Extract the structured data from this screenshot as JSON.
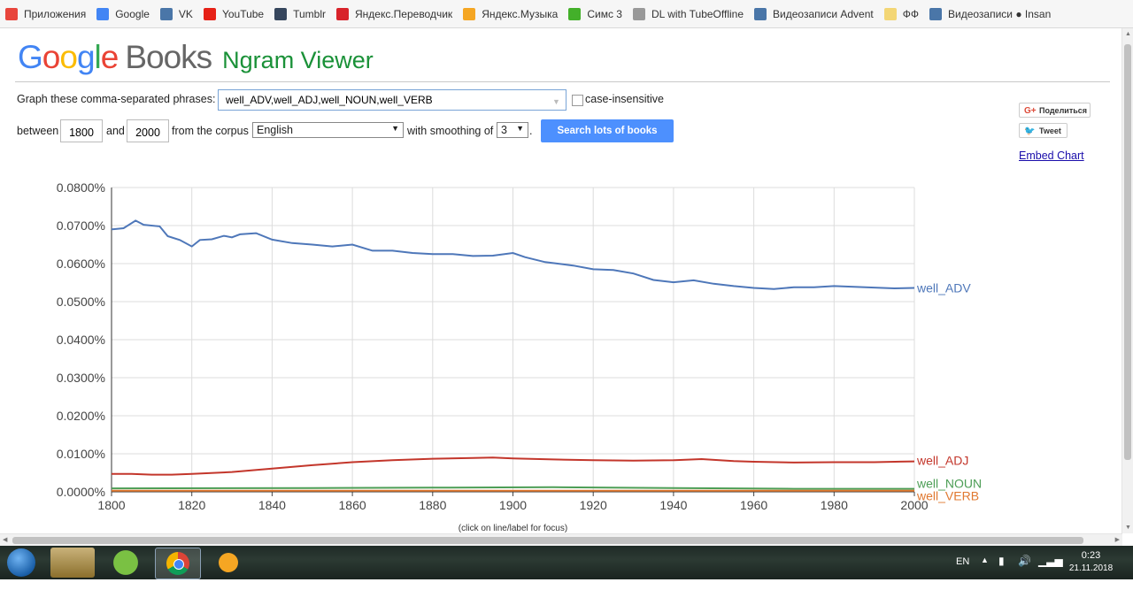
{
  "bookmarks": [
    {
      "label": "Приложения",
      "icon": "apps-grid-icon",
      "color": "#e8453c"
    },
    {
      "label": "Google",
      "icon": "google-icon",
      "color": "#4285f4"
    },
    {
      "label": "VK",
      "icon": "vk-icon",
      "color": "#4a76a8"
    },
    {
      "label": "YouTube",
      "icon": "youtube-icon",
      "color": "#e62117"
    },
    {
      "label": "Tumblr",
      "icon": "tumblr-icon",
      "color": "#36465d"
    },
    {
      "label": "Яндекс.Переводчик",
      "icon": "yandex-translate-icon",
      "color": "#d8232a"
    },
    {
      "label": "Яндекс.Музыка",
      "icon": "yandex-music-icon",
      "color": "#f5a623"
    },
    {
      "label": "Симс 3",
      "icon": "sims-icon",
      "color": "#43b02a"
    },
    {
      "label": "DL with TubeOffline",
      "icon": "page-icon",
      "color": "#999999"
    },
    {
      "label": "Видеозаписи Advent",
      "icon": "vk-icon",
      "color": "#4a76a8"
    },
    {
      "label": "ФФ",
      "icon": "folder-icon",
      "color": "#f3d675"
    },
    {
      "label": "Видеозаписи ● Insan",
      "icon": "vk-icon",
      "color": "#4a76a8"
    }
  ],
  "logo": {
    "google": "Google",
    "books": "Books",
    "ngram": "Ngram Viewer"
  },
  "form": {
    "phrases_label": "Graph these comma-separated phrases:",
    "phrases_value": "well_ADV,well_ADJ,well_NOUN,well_VERB",
    "case_label": "case-insensitive",
    "between_label": "between",
    "start_year": "1800",
    "and_label": "and",
    "end_year": "2000",
    "corpus_label": "from the corpus",
    "corpus_value": "English",
    "smoothing_label": "with smoothing of",
    "smoothing_value": "3",
    "period": ".",
    "search_label": "Search lots of books"
  },
  "share": {
    "gplus": "Поделиться",
    "tweet": "Tweet",
    "embed": "Embed Chart"
  },
  "chart_data": {
    "type": "line",
    "xlim": [
      1800,
      2000
    ],
    "ylim": [
      0,
      0.08
    ],
    "x_ticks": [
      1800,
      1820,
      1840,
      1860,
      1880,
      1900,
      1920,
      1940,
      1960,
      1980,
      2000
    ],
    "y_ticks": [
      "0.0000%",
      "0.0100%",
      "0.0200%",
      "0.0300%",
      "0.0400%",
      "0.0500%",
      "0.0600%",
      "0.0700%",
      "0.0800%"
    ],
    "footnote": "(click on line/label for focus)",
    "grid": true,
    "legend": "line-end labels",
    "series": [
      {
        "name": "well_ADV",
        "color": "#4e77b9",
        "points": [
          [
            1800,
            0.069
          ],
          [
            1803,
            0.0693
          ],
          [
            1806,
            0.0713
          ],
          [
            1808,
            0.0702
          ],
          [
            1812,
            0.0698
          ],
          [
            1814,
            0.0672
          ],
          [
            1817,
            0.0662
          ],
          [
            1820,
            0.0645
          ],
          [
            1822,
            0.0662
          ],
          [
            1825,
            0.0664
          ],
          [
            1828,
            0.0673
          ],
          [
            1830,
            0.0669
          ],
          [
            1832,
            0.0677
          ],
          [
            1836,
            0.068
          ],
          [
            1840,
            0.0663
          ],
          [
            1845,
            0.0654
          ],
          [
            1850,
            0.065
          ],
          [
            1855,
            0.0645
          ],
          [
            1860,
            0.065
          ],
          [
            1865,
            0.0634
          ],
          [
            1870,
            0.0634
          ],
          [
            1875,
            0.0628
          ],
          [
            1880,
            0.0625
          ],
          [
            1885,
            0.0625
          ],
          [
            1890,
            0.062
          ],
          [
            1895,
            0.0621
          ],
          [
            1900,
            0.0628
          ],
          [
            1903,
            0.0617
          ],
          [
            1908,
            0.0604
          ],
          [
            1915,
            0.0595
          ],
          [
            1920,
            0.0585
          ],
          [
            1925,
            0.0583
          ],
          [
            1930,
            0.0574
          ],
          [
            1935,
            0.0557
          ],
          [
            1940,
            0.0551
          ],
          [
            1945,
            0.0556
          ],
          [
            1950,
            0.0547
          ],
          [
            1955,
            0.0541
          ],
          [
            1960,
            0.0536
          ],
          [
            1965,
            0.0533
          ],
          [
            1970,
            0.0538
          ],
          [
            1975,
            0.0538
          ],
          [
            1980,
            0.0541
          ],
          [
            1985,
            0.0539
          ],
          [
            1990,
            0.0537
          ],
          [
            1995,
            0.0535
          ],
          [
            2000,
            0.0536
          ]
        ]
      },
      {
        "name": "well_ADJ",
        "color": "#c3362b",
        "points": [
          [
            1800,
            0.0047
          ],
          [
            1805,
            0.0047
          ],
          [
            1810,
            0.0045
          ],
          [
            1815,
            0.0045
          ],
          [
            1820,
            0.0047
          ],
          [
            1830,
            0.0052
          ],
          [
            1840,
            0.0061
          ],
          [
            1850,
            0.007
          ],
          [
            1860,
            0.0078
          ],
          [
            1870,
            0.0083
          ],
          [
            1880,
            0.0087
          ],
          [
            1890,
            0.0089
          ],
          [
            1895,
            0.009
          ],
          [
            1900,
            0.0088
          ],
          [
            1910,
            0.0085
          ],
          [
            1920,
            0.0083
          ],
          [
            1930,
            0.0082
          ],
          [
            1940,
            0.0083
          ],
          [
            1947,
            0.0086
          ],
          [
            1955,
            0.0081
          ],
          [
            1960,
            0.0079
          ],
          [
            1970,
            0.0077
          ],
          [
            1980,
            0.0078
          ],
          [
            1990,
            0.0078
          ],
          [
            2000,
            0.008
          ]
        ]
      },
      {
        "name": "well_NOUN",
        "color": "#4d9e56",
        "points": [
          [
            1800,
            0.0009
          ],
          [
            1850,
            0.001
          ],
          [
            1880,
            0.0011
          ],
          [
            1910,
            0.0012
          ],
          [
            1940,
            0.001
          ],
          [
            1970,
            0.0008
          ],
          [
            2000,
            0.0008
          ]
        ]
      },
      {
        "name": "well_VERB",
        "color": "#e0782f",
        "points": [
          [
            1800,
            0.0003
          ],
          [
            1850,
            0.0003
          ],
          [
            1900,
            0.0003
          ],
          [
            1950,
            0.0003
          ],
          [
            2000,
            0.0003
          ]
        ]
      }
    ]
  },
  "taskbar": {
    "lang": "EN",
    "time": "0:23",
    "date": "21.11.2018"
  }
}
